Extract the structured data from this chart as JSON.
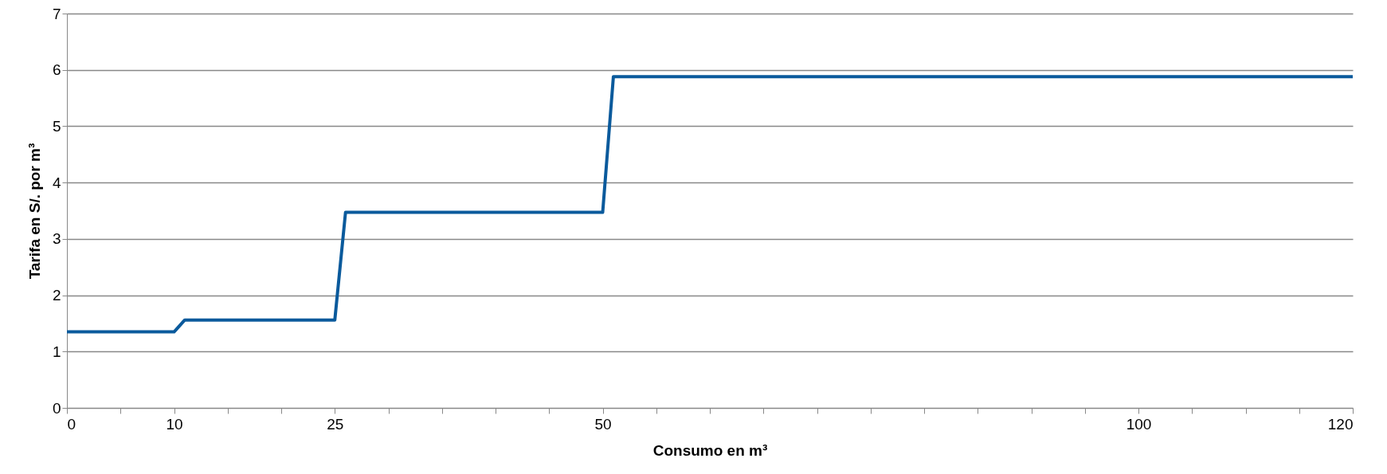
{
  "chart_data": {
    "type": "line",
    "xlabel": "Consumo en m³",
    "ylabel": "Tarifa en S/. por m³",
    "x": [
      0,
      10,
      11,
      25,
      26,
      50,
      51,
      120
    ],
    "series": [
      {
        "color": "#0a5a9c",
        "values": [
          1.35,
          1.35,
          1.56,
          1.56,
          3.47,
          3.47,
          5.88,
          5.88
        ]
      }
    ],
    "xlim": [
      0,
      120
    ],
    "xticks": [
      0,
      {
        "value": 5,
        "label": null
      },
      10,
      {
        "value": 15,
        "label": null
      },
      {
        "value": 20,
        "label": null
      },
      25,
      {
        "value": 30,
        "label": null
      },
      {
        "value": 35,
        "label": null
      },
      {
        "value": 40,
        "label": null
      },
      {
        "value": 45,
        "label": null
      },
      50,
      {
        "value": 55,
        "label": null
      },
      {
        "value": 60,
        "label": null
      },
      {
        "value": 65,
        "label": null
      },
      {
        "value": 70,
        "label": null
      },
      {
        "value": 75,
        "label": null
      },
      {
        "value": 80,
        "label": null
      },
      {
        "value": 85,
        "label": null
      },
      {
        "value": 90,
        "label": null
      },
      {
        "value": 95,
        "label": null
      },
      100,
      {
        "value": 105,
        "label": null
      },
      {
        "value": 110,
        "label": null
      },
      {
        "value": 115,
        "label": null
      },
      120
    ],
    "ylim": [
      0,
      7
    ],
    "yticks": [
      0,
      1,
      2,
      3,
      4,
      5,
      6,
      7
    ],
    "grid": "y",
    "marker": "none",
    "line_style": "solid"
  }
}
